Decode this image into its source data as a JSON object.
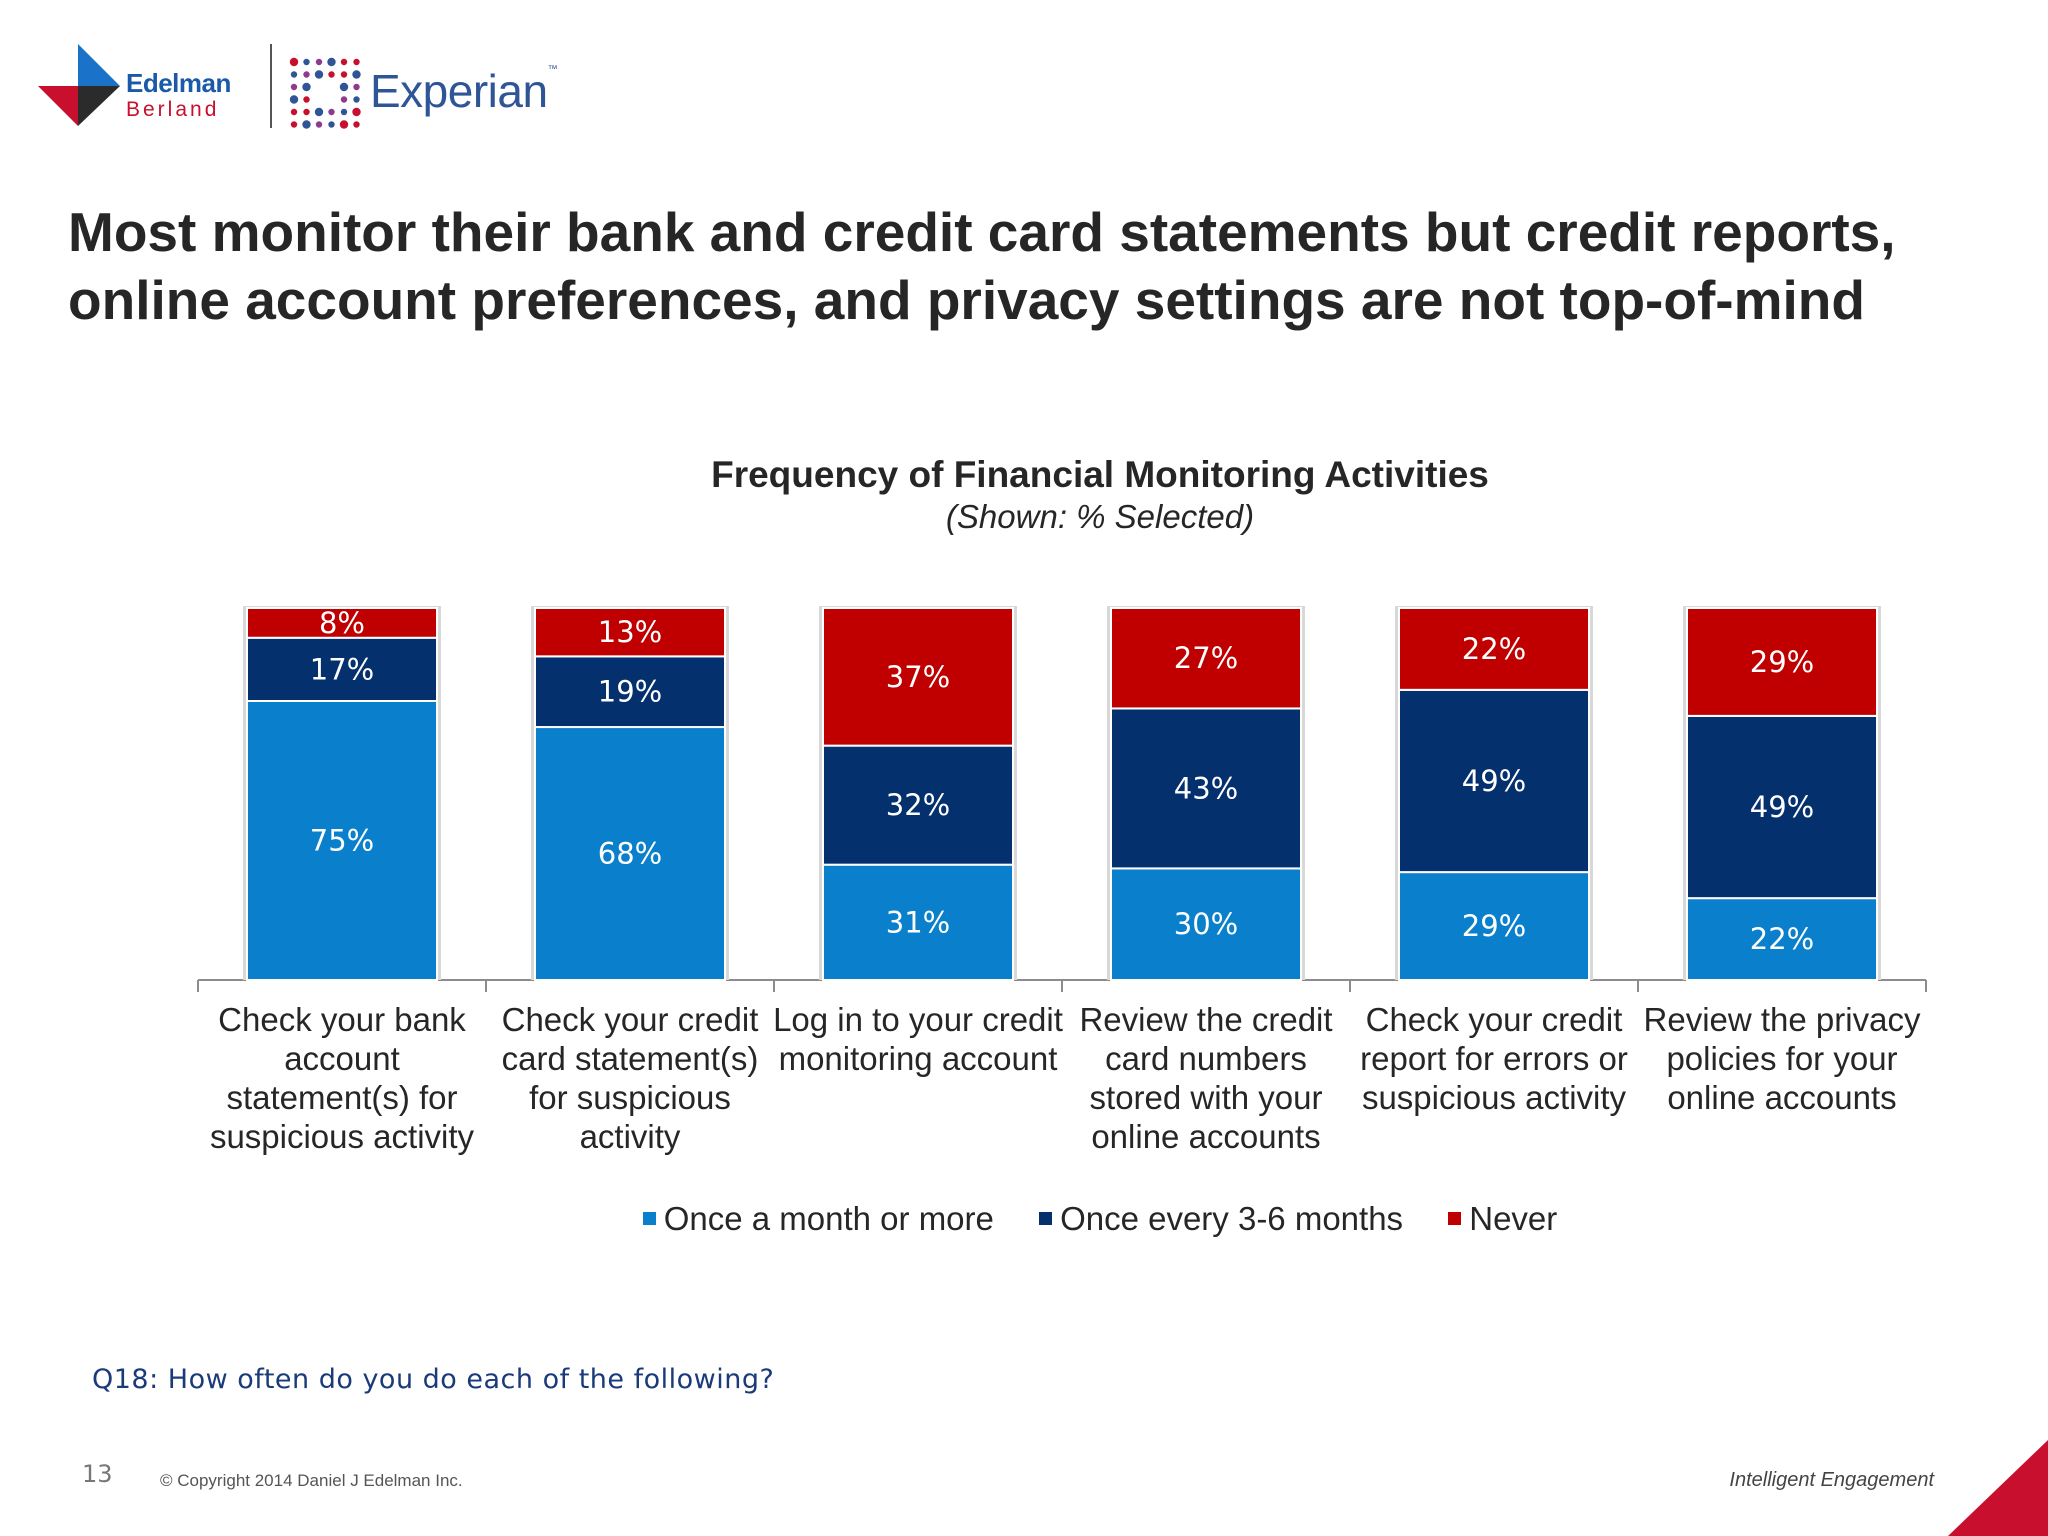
{
  "brand": {
    "edelman_name": "Edelman",
    "edelman_sub": "Berland",
    "experian_name": "Experian",
    "experian_tm": "™"
  },
  "headline": "Most monitor their bank and credit card statements but credit reports, online account preferences, and privacy settings are not top-of-mind",
  "colors": {
    "once_month": "#0a80cc",
    "every_3_6": "#04306e",
    "never": "#c00000",
    "brand_blue": "#1a5aa8",
    "brand_red": "#c8102e"
  },
  "chart_data": {
    "type": "bar",
    "stacked": true,
    "title": "Frequency of Financial Monitoring Activities",
    "subtitle": "(Shown: % Selected)",
    "categories": [
      "Check your bank account statement(s) for suspicious activity",
      "Check your credit card statement(s) for suspicious activity",
      "Log in to your credit monitoring account",
      "Review the credit card numbers stored with your online accounts",
      "Check your credit report for errors or suspicious activity",
      "Review the privacy policies for your online accounts"
    ],
    "series": [
      {
        "name": "Once a month or more",
        "values": [
          75,
          68,
          31,
          30,
          29,
          22
        ],
        "color": "#0a80cc"
      },
      {
        "name": "Once every 3-6 months",
        "values": [
          17,
          19,
          32,
          43,
          49,
          49
        ],
        "color": "#04306e"
      },
      {
        "name": "Never",
        "values": [
          8,
          13,
          37,
          27,
          22,
          29
        ],
        "color": "#c00000"
      }
    ],
    "value_labels": [
      [
        "75%",
        "68%",
        "31%",
        "30%",
        "29%",
        "22%"
      ],
      [
        "17%",
        "19%",
        "32%",
        "43%",
        "49%",
        "49%"
      ],
      [
        "8%",
        "13%",
        "37%",
        "27%",
        "22%",
        "29%"
      ]
    ],
    "ylim": [
      0,
      100
    ],
    "legend_position": "bottom",
    "grid": false
  },
  "footer": {
    "question": "Q18: How often do you do each of the following?",
    "page_number": "13",
    "copyright": "© Copyright 2014 Daniel J Edelman Inc.",
    "tagline": "Intelligent Engagement"
  }
}
